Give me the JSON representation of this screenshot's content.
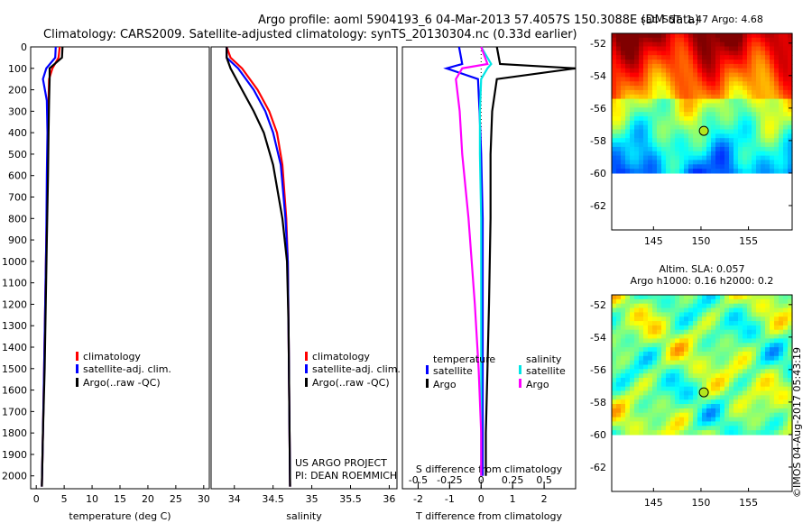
{
  "header": {
    "line1": "Argo profile: aoml 5904193_6 04-Mar-2013 57.4057S 150.3088E (DM data)",
    "line2": "Climatology: CARS2009. Satellite-adjusted climatology: synTS_20130304.nc (0.33d earlier)"
  },
  "colors": {
    "climatology": "#ff0000",
    "satellite": "#0000ff",
    "argo": "#000000",
    "sat_salinity": "#00e5e5",
    "argo_salinity": "#ff00ff"
  },
  "chart_data": [
    {
      "type": "line",
      "title": "",
      "xlabel": "temperature (deg C)",
      "ylabel": "",
      "xlim": [
        -1,
        31
      ],
      "ylim": [
        2060,
        0
      ],
      "xticks": [
        0,
        5,
        10,
        15,
        20,
        25,
        30
      ],
      "yticks": [
        0,
        100,
        200,
        300,
        400,
        500,
        600,
        700,
        800,
        900,
        1000,
        1100,
        1200,
        1300,
        1400,
        1500,
        1600,
        1700,
        1800,
        1900,
        2000
      ],
      "legend": [
        "climatology",
        "satellite-adj. clim.",
        "Argo(..raw -QC)"
      ],
      "legend_position": "lower-center",
      "series": [
        {
          "name": "climatology",
          "x": [
            4.2,
            4.0,
            2.9,
            2.3,
            2.2,
            2.1,
            2.0,
            1.8,
            1.6,
            1.4,
            1.2,
            1.0
          ],
          "y": [
            0,
            50,
            100,
            150,
            250,
            400,
            600,
            900,
            1200,
            1500,
            1800,
            2050
          ]
        },
        {
          "name": "satellite-adj. clim.",
          "x": [
            3.5,
            3.4,
            1.8,
            1.2,
            1.9,
            2.0,
            1.9,
            1.8,
            1.6,
            1.4,
            1.2,
            1.0
          ],
          "y": [
            0,
            50,
            100,
            150,
            250,
            400,
            600,
            900,
            1200,
            1500,
            1800,
            2050
          ]
        },
        {
          "name": "Argo(..raw -QC)",
          "x": [
            4.7,
            4.6,
            2.4,
            2.4,
            2.3,
            2.2,
            2.1,
            1.9,
            1.7,
            1.5,
            1.2,
            1.0
          ],
          "y": [
            0,
            50,
            100,
            150,
            250,
            400,
            600,
            900,
            1200,
            1500,
            1800,
            2050
          ]
        }
      ]
    },
    {
      "type": "line",
      "title": "",
      "xlabel": "salinity",
      "ylabel": "",
      "xlim": [
        33.7,
        36.1
      ],
      "ylim": [
        2060,
        0
      ],
      "xticks": [
        34,
        34.5,
        35,
        35.5,
        36
      ],
      "legend": [
        "climatology",
        "satellite-adj. clim.",
        "Argo(..raw -QC)"
      ],
      "legend_position": "lower-center",
      "annotations": [
        "US ARGO PROJECT",
        "PI: DEAN ROEMMICH"
      ],
      "series": [
        {
          "name": "climatology",
          "x": [
            33.9,
            33.95,
            34.1,
            34.3,
            34.45,
            34.55,
            34.62,
            34.67,
            34.69,
            34.7,
            34.71,
            34.72
          ],
          "y": [
            0,
            50,
            100,
            200,
            300,
            400,
            550,
            800,
            1000,
            1300,
            1700,
            2050
          ]
        },
        {
          "name": "satellite-adj. clim.",
          "x": [
            33.9,
            33.9,
            34.05,
            34.25,
            34.4,
            34.5,
            34.6,
            34.66,
            34.69,
            34.7,
            34.71,
            34.72
          ],
          "y": [
            0,
            50,
            100,
            200,
            300,
            400,
            550,
            800,
            1000,
            1300,
            1700,
            2050
          ]
        },
        {
          "name": "Argo(..raw -QC)",
          "x": [
            33.9,
            33.9,
            33.95,
            34.1,
            34.25,
            34.38,
            34.5,
            34.62,
            34.68,
            34.7,
            34.71,
            34.72
          ],
          "y": [
            0,
            50,
            100,
            200,
            300,
            400,
            550,
            800,
            1000,
            1300,
            1700,
            2050
          ]
        }
      ]
    },
    {
      "type": "line",
      "title": "",
      "xlabel": "T difference from climatology",
      "xlabel_top": "S difference from climatology",
      "ylabel": "",
      "xlim": [
        -2.5,
        3
      ],
      "ylim": [
        2060,
        0
      ],
      "xticks": [
        -2,
        -1,
        0,
        1,
        2
      ],
      "sticks": [
        -0.5,
        -0.25,
        0,
        0.25,
        0.5
      ],
      "legend_temperature": {
        "heading": "temperature",
        "items": [
          "satellite",
          "Argo"
        ]
      },
      "legend_salinity": {
        "heading": "salinity",
        "items": [
          "satellite",
          "Argo"
        ]
      },
      "series": [
        {
          "name": "satellite",
          "group": "temperature",
          "x": [
            -0.7,
            -0.6,
            -1.1,
            -0.1,
            -0.05,
            0.0,
            0.05,
            0.05,
            0.05,
            0.05,
            0.05
          ],
          "y": [
            0,
            80,
            100,
            150,
            300,
            500,
            800,
            1200,
            1500,
            1800,
            2000
          ]
        },
        {
          "name": "Argo",
          "group": "temperature",
          "x": [
            0.5,
            0.6,
            3.0,
            0.5,
            0.35,
            0.3,
            0.3,
            0.25,
            0.2,
            0.15,
            0.15
          ],
          "y": [
            0,
            80,
            100,
            150,
            300,
            500,
            800,
            1200,
            1500,
            1800,
            2000
          ]
        },
        {
          "name": "satellite",
          "group": "salinity",
          "x": [
            0.0,
            0.08,
            0.05,
            0.0,
            -0.01,
            -0.01,
            0.0,
            0.0,
            0.0,
            0.0,
            0.0
          ],
          "y": [
            0,
            80,
            100,
            150,
            300,
            500,
            800,
            1200,
            1500,
            1800,
            2000
          ]
        },
        {
          "name": "Argo",
          "group": "salinity",
          "x": [
            0.0,
            0.05,
            -0.15,
            -0.2,
            -0.17,
            -0.15,
            -0.1,
            -0.05,
            -0.02,
            0.0,
            0.0
          ],
          "y": [
            0,
            80,
            100,
            150,
            300,
            500,
            800,
            1200,
            1500,
            1800,
            2000
          ]
        }
      ]
    },
    {
      "type": "heatmap",
      "title": "sat. SST: 1.47 Argo: 4.68",
      "xticks": [
        145,
        150,
        155
      ],
      "yticks": [
        -52,
        -54,
        -56,
        -58,
        -60,
        -62
      ],
      "xlim": [
        140.6,
        159.6
      ],
      "ylim": [
        -63.5,
        -51.4
      ],
      "data_bottom": -60,
      "marker": {
        "lon": 150.3,
        "lat": -57.4
      }
    },
    {
      "type": "heatmap",
      "title": "Altim. SLA: 0.057",
      "subtitle": "Argo h1000: 0.16 h2000: 0.2",
      "xticks": [
        145,
        150,
        155
      ],
      "yticks": [
        -52,
        -54,
        -56,
        -58,
        -60,
        -62
      ],
      "xlim": [
        140.6,
        159.6
      ],
      "ylim": [
        -63.5,
        -51.4
      ],
      "data_bottom": -60,
      "marker": {
        "lon": 150.3,
        "lat": -57.4
      }
    }
  ],
  "credit": "©IMOS 04-Aug-2017 05:43:19"
}
